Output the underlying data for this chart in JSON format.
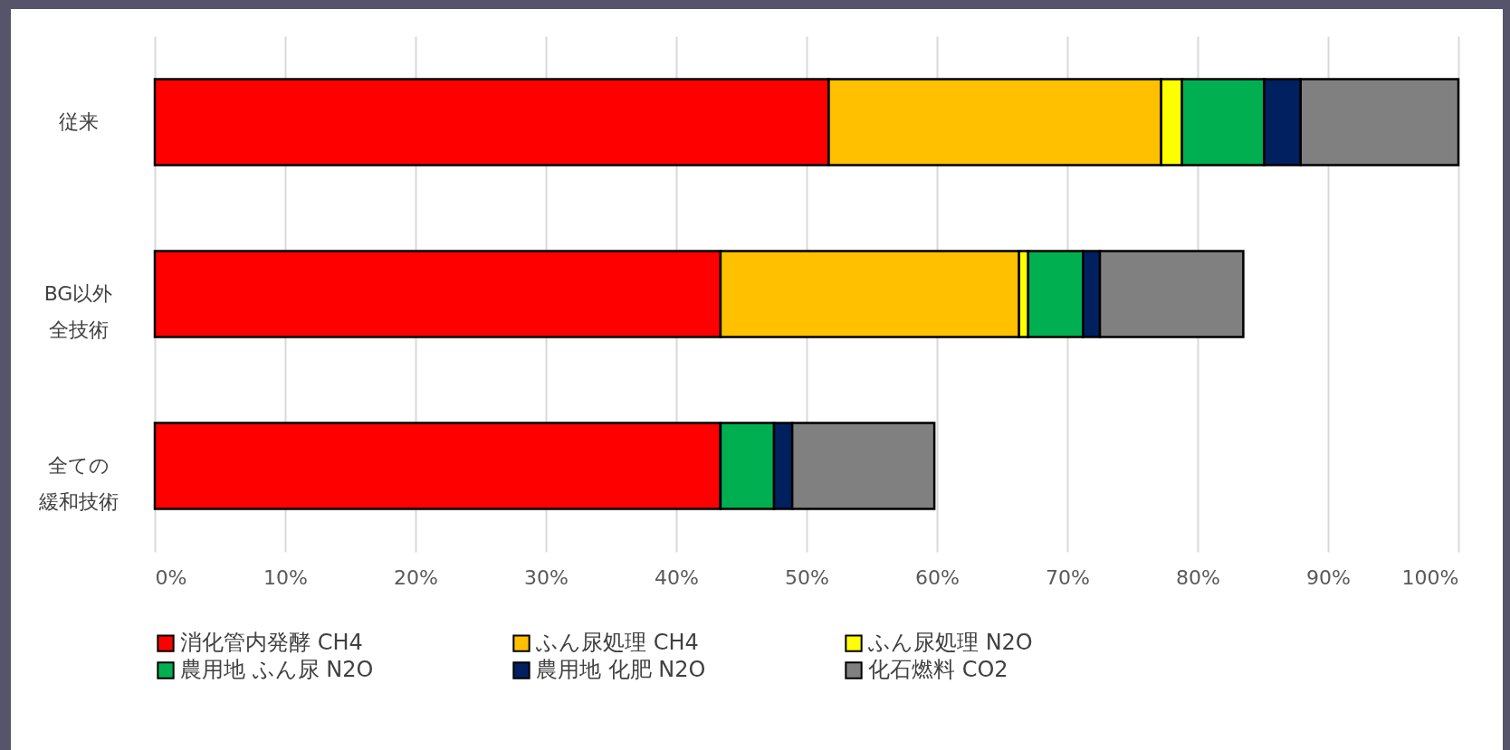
{
  "chart_data": {
    "type": "bar",
    "orientation": "horizontal",
    "stacked": true,
    "categories": [
      "従来",
      "BG以外全技術",
      "全ての緩和技術"
    ],
    "series": [
      {
        "name": "消化管内発酵 CH4",
        "color": "#ff0000",
        "values": [
          51.7,
          43.4,
          43.4
        ]
      },
      {
        "name": "ふん尿処理 CH4",
        "color": "#ffc000",
        "values": [
          25.5,
          22.9,
          0
        ]
      },
      {
        "name": "ふん尿処理 N2O",
        "color": "#ffff00",
        "values": [
          1.6,
          0.7,
          0
        ]
      },
      {
        "name": "農用地 ふん尿 N2O",
        "color": "#00b050",
        "values": [
          6.3,
          4.2,
          4.1
        ]
      },
      {
        "name": "農用地 化肥 N2O",
        "color": "#002060",
        "values": [
          2.8,
          1.3,
          1.4
        ]
      },
      {
        "name": "化石燃料 CO2",
        "color": "#808080",
        "values": [
          12.1,
          11.0,
          10.9
        ]
      }
    ],
    "xlim": [
      0,
      100
    ],
    "xticks": [
      {
        "value": 0,
        "label": "0%"
      },
      {
        "value": 10,
        "label": "10%"
      },
      {
        "value": 20,
        "label": "20%"
      },
      {
        "value": 30,
        "label": "30%"
      },
      {
        "value": 40,
        "label": "40%"
      },
      {
        "value": 50,
        "label": "50%"
      },
      {
        "value": 60,
        "label": "60%"
      },
      {
        "value": 70,
        "label": "70%"
      },
      {
        "value": 80,
        "label": "80%"
      },
      {
        "value": 90,
        "label": "90%"
      },
      {
        "value": 100,
        "label": "100%"
      }
    ],
    "grid": "x",
    "legend": "bottom"
  }
}
